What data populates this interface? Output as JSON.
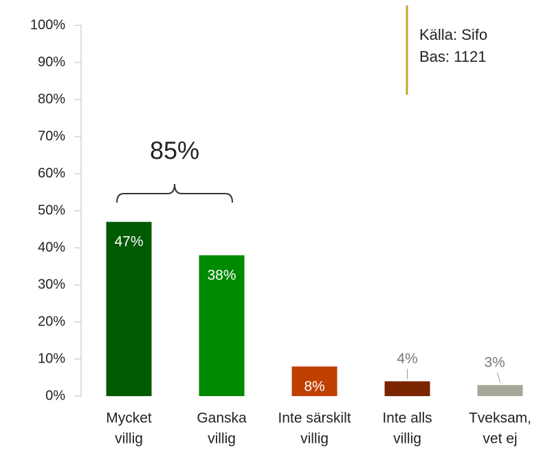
{
  "chart_data": {
    "type": "bar",
    "categories": [
      [
        "Mycket",
        "villig"
      ],
      [
        "Ganska",
        "villig"
      ],
      [
        "Inte särskilt",
        "villig"
      ],
      [
        "Inte alls",
        "villig"
      ],
      [
        "Tveksam,",
        "vet ej"
      ]
    ],
    "values": [
      47,
      38,
      8,
      4,
      3
    ],
    "value_labels": [
      "47%",
      "38%",
      "8%",
      "4%",
      "3%"
    ],
    "label_inside": [
      true,
      true,
      true,
      false,
      false
    ],
    "colors": [
      "#005a00",
      "#008a00",
      "#c04000",
      "#7a2500",
      "#a8a89a"
    ],
    "ylim": [
      0,
      100
    ],
    "yticks": [
      {
        "value": 0,
        "label": "0%"
      },
      {
        "value": 10,
        "label": "10%"
      },
      {
        "value": 20,
        "label": "20%"
      },
      {
        "value": 30,
        "label": "30%"
      },
      {
        "value": 40,
        "label": "40%"
      },
      {
        "value": 50,
        "label": "50%"
      },
      {
        "value": 60,
        "label": "60%"
      },
      {
        "value": 70,
        "label": "70%"
      },
      {
        "value": 80,
        "label": "80%"
      },
      {
        "value": 90,
        "label": "90%"
      },
      {
        "value": 100,
        "label": "100%"
      }
    ],
    "annotations": [
      "85%"
    ],
    "source": [
      "Källa: Sifo",
      "Bas: 1121"
    ]
  }
}
